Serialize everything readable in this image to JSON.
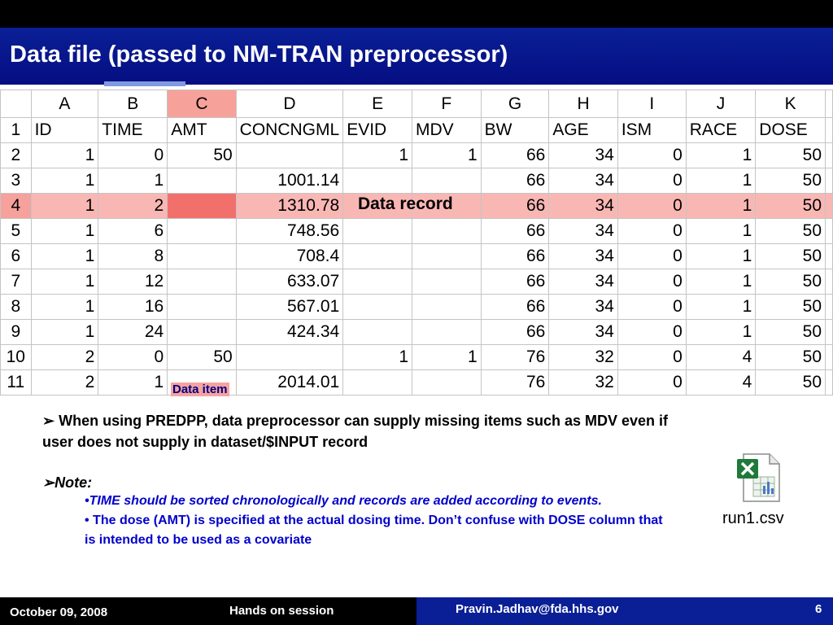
{
  "slide": {
    "title": "Data file (passed to NM-TRAN preprocessor)"
  },
  "spreadsheet": {
    "column_letters": [
      "A",
      "B",
      "C",
      "D",
      "E",
      "F",
      "G",
      "H",
      "I",
      "J",
      "K"
    ],
    "row_numbers": [
      "1",
      "2",
      "3",
      "4",
      "5",
      "6",
      "7",
      "8",
      "9",
      "10",
      "11"
    ],
    "headers": [
      "ID",
      "TIME",
      "AMT",
      "CONCNGML",
      "EVID",
      "MDV",
      "BW",
      "AGE",
      "ISM",
      "RACE",
      "DOSE"
    ],
    "rows": [
      [
        "1",
        "0",
        "50",
        "",
        "1",
        "1",
        "66",
        "34",
        "0",
        "1",
        "50"
      ],
      [
        "1",
        "1",
        "",
        "1001.14",
        "",
        "",
        "66",
        "34",
        "0",
        "1",
        "50"
      ],
      [
        "1",
        "2",
        "",
        "1310.78",
        "",
        "",
        "66",
        "34",
        "0",
        "1",
        "50"
      ],
      [
        "1",
        "6",
        "",
        "748.56",
        "",
        "",
        "66",
        "34",
        "0",
        "1",
        "50"
      ],
      [
        "1",
        "8",
        "",
        "708.4",
        "",
        "",
        "66",
        "34",
        "0",
        "1",
        "50"
      ],
      [
        "1",
        "12",
        "",
        "633.07",
        "",
        "",
        "66",
        "34",
        "0",
        "1",
        "50"
      ],
      [
        "1",
        "16",
        "",
        "567.01",
        "",
        "",
        "66",
        "34",
        "0",
        "1",
        "50"
      ],
      [
        "1",
        "24",
        "",
        "424.34",
        "",
        "",
        "66",
        "34",
        "0",
        "1",
        "50"
      ],
      [
        "2",
        "0",
        "50",
        "",
        "1",
        "1",
        "76",
        "32",
        "0",
        "4",
        "50"
      ],
      [
        "2",
        "1",
        "",
        "2014.01",
        "",
        "",
        "76",
        "32",
        "0",
        "4",
        "50"
      ]
    ],
    "highlight_row_color": "#f9b7b4",
    "highlight_column_color": "#f6a3a0",
    "data_record_label": "Data record",
    "data_item_label": "Data item"
  },
  "content": {
    "bullet1_marker": "➢",
    "bullet1": "When using PREDPP, data preprocessor can supply missing items such as MDV even if user does not supply in dataset/$INPUT record",
    "note_marker": "➢",
    "note_label": "Note:",
    "sub1_marker": "•",
    "sub1": "TIME should be sorted chronologically and records are added according to events.",
    "sub2_marker": "•",
    "sub2": " The dose (AMT) is specified at the actual dosing time. Don’t confuse with DOSE column that is intended to be used as a covariate"
  },
  "file": {
    "name": "run1.csv",
    "icon": "excel-csv-file-icon"
  },
  "footer": {
    "date": "October 09, 2008",
    "session": "Hands on session",
    "email": "Pravin.Jadhav@fda.hhs.gov",
    "page": "6"
  }
}
